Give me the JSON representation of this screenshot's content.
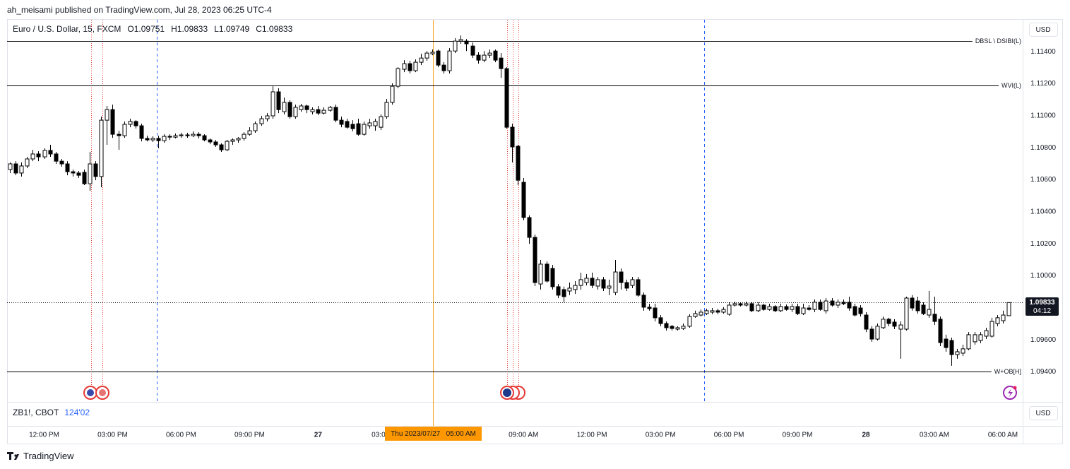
{
  "published": "ah_meisami published on TradingView.com, Jul 28, 2023 06:25 UTC-4",
  "header": {
    "symbol": "Euro / U.S. Dollar, 15, FXCM",
    "ohlc": [
      "O1.09751",
      "H1.09833",
      "L1.09749",
      "C1.09833"
    ]
  },
  "currency": "USD",
  "countdown": "04:12",
  "crosshair_label": "Thu 2023/07/27   05:00 AM",
  "lower_pane": {
    "symbol": "ZB1!, CBOT",
    "value": "124'02"
  },
  "brand": "TradingView",
  "chart_data": {
    "type": "candlestick",
    "up_color": "#ffffff",
    "down_color": "#000000",
    "outline_color": "#000000",
    "grid": false,
    "ylim": [
      1.09217,
      1.11599
    ],
    "yticks": [
      {
        "value": 1.094,
        "label": "1.09400"
      },
      {
        "value": 1.096,
        "label": "1.09600"
      },
      {
        "value": 1.098,
        "label": "1.09800"
      },
      {
        "value": 1.1,
        "label": "1.10000"
      },
      {
        "value": 1.102,
        "label": "1.10200"
      },
      {
        "value": 1.104,
        "label": "1.10400"
      },
      {
        "value": 1.106,
        "label": "1.10600"
      },
      {
        "value": 1.108,
        "label": "1.10800"
      },
      {
        "value": 1.11,
        "label": "1.11000"
      },
      {
        "value": 1.112,
        "label": "1.11200"
      },
      {
        "value": 1.114,
        "label": "1.11400"
      }
    ],
    "levels": [
      {
        "label": "DBSL \\ DSIBI(L)",
        "value": 1.11466
      },
      {
        "label": "WVI(L)",
        "value": 1.11188
      },
      {
        "label": "W+OB[H]",
        "value": 1.09402
      }
    ],
    "categories": [
      null,
      null,
      null,
      null,
      null,
      null,
      "12:00 PM",
      null,
      null,
      null,
      null,
      null,
      null,
      null,
      null,
      null,
      null,
      null,
      "03:00 PM",
      null,
      null,
      null,
      null,
      null,
      null,
      null,
      null,
      null,
      null,
      null,
      "06:00 PM",
      null,
      null,
      null,
      null,
      null,
      null,
      null,
      null,
      null,
      null,
      null,
      "09:00 PM",
      null,
      null,
      null,
      null,
      null,
      null,
      null,
      null,
      null,
      null,
      null,
      "27",
      null,
      null,
      null,
      null,
      null,
      null,
      null,
      null,
      null,
      null,
      null,
      "03:00 AM",
      null,
      null,
      null,
      null,
      null,
      null,
      null,
      null,
      null,
      null,
      null,
      null,
      null,
      null,
      null,
      null,
      null,
      null,
      null,
      null,
      null,
      null,
      null,
      "09:00 AM",
      null,
      null,
      null,
      null,
      null,
      null,
      null,
      null,
      null,
      null,
      null,
      "12:00 PM",
      null,
      null,
      null,
      null,
      null,
      null,
      null,
      null,
      null,
      null,
      null,
      "03:00 PM",
      null,
      null,
      null,
      null,
      null,
      null,
      null,
      null,
      null,
      null,
      null,
      "06:00 PM",
      null,
      null,
      null,
      null,
      null,
      null,
      null,
      null,
      null,
      null,
      null,
      "09:00 PM",
      null,
      null,
      null,
      null,
      null,
      null,
      null,
      null,
      null,
      null,
      null,
      "28",
      null,
      null,
      null,
      null,
      null,
      null,
      null,
      null,
      null,
      null,
      null,
      "03:00 AM",
      null,
      null,
      null,
      null,
      null,
      null,
      null,
      null,
      null,
      null,
      null,
      "06:00 AM",
      null
    ],
    "open": [
      1.10664,
      1.10699,
      1.10642,
      1.10686,
      1.1073,
      1.10761,
      1.10743,
      1.10783,
      1.10761,
      1.10716,
      1.10699,
      1.1065,
      1.10642,
      1.10646,
      1.10575,
      1.10699,
      1.1062,
      1.10972,
      1.11038,
      1.10884,
      1.10875,
      1.10946,
      1.10964,
      1.10937,
      1.10858,
      1.10849,
      1.10858,
      1.10844,
      1.10871,
      1.10866,
      1.10875,
      1.1088,
      1.10875,
      1.10884,
      1.10875,
      1.10849,
      1.10836,
      1.10818,
      1.10787,
      1.1084,
      1.10849,
      1.10858,
      1.10884,
      1.10906,
      1.1095,
      1.10981,
      1.10999,
      1.11149,
      1.11025,
      1.11083,
      1.10994,
      1.11038,
      1.11061,
      1.11025,
      1.11038,
      1.11016,
      1.11034,
      1.11052,
      1.10972,
      1.10964,
      1.10946,
      1.1095,
      1.10884,
      1.10937,
      1.10937,
      1.10928,
      1.10994,
      1.11083,
      1.11184,
      1.1129,
      1.11325,
      1.11281,
      1.11334,
      1.1136,
      1.11387,
      1.11404,
      1.11316,
      1.11281,
      1.11404,
      1.11466,
      1.11466,
      1.11435,
      1.11378,
      1.11347,
      1.11378,
      1.11404,
      1.1136,
      1.11294,
      1.10928,
      1.10809,
      1.10584,
      1.10364,
      1.1024,
      1.09949,
      1.10073,
      1.10046,
      1.09932,
      1.09914,
      1.09905,
      1.09914,
      1.0994,
      1.09958,
      1.09985,
      1.09936,
      1.09976,
      1.09923,
      1.09896,
      1.10024,
      1.09958,
      1.0994,
      1.09976,
      1.09879,
      1.09804,
      1.09799,
      1.09738,
      1.09702,
      1.09685,
      1.09667,
      1.09671,
      1.09685,
      1.09746,
      1.09755,
      1.09764,
      1.09773,
      1.09782,
      1.09773,
      1.0976,
      1.09817,
      1.09826,
      1.09817,
      1.09826,
      1.09782,
      1.09817,
      1.0979,
      1.09808,
      1.09782,
      1.09808,
      1.0979,
      1.09808,
      1.09764,
      1.09799,
      1.0979,
      1.09835,
      1.09782,
      1.09843,
      1.09817,
      1.09835,
      1.09835,
      1.09808,
      1.09799,
      1.09755,
      1.09667,
      1.09605,
      1.09676,
      1.09729,
      1.09711,
      1.09667,
      1.09667,
      1.09861,
      1.09843,
      1.09817,
      1.09755,
      1.0976,
      1.09729,
      1.09605,
      1.09596,
      1.09508,
      1.09517,
      1.09544,
      1.09588,
      1.09596,
      1.09623,
      1.09623,
      1.09702,
      1.0972,
      1.09751
    ],
    "high": [
      1.10708,
      1.10716,
      1.10708,
      1.10743,
      1.10787,
      1.10778,
      1.10796,
      1.10818,
      1.10774,
      1.1073,
      1.10716,
      1.10664,
      1.10655,
      1.10664,
      1.10774,
      1.10716,
      1.10994,
      1.11061,
      1.11069,
      1.10906,
      1.10964,
      1.10981,
      1.10972,
      1.1095,
      1.10875,
      1.10871,
      1.10875,
      1.10884,
      1.10884,
      1.10889,
      1.10893,
      1.10893,
      1.10902,
      1.10897,
      1.10884,
      1.10858,
      1.10849,
      1.10827,
      1.10849,
      1.10858,
      1.10866,
      1.10897,
      1.10928,
      1.10964,
      1.10999,
      1.11016,
      1.11184,
      1.11171,
      1.11113,
      1.11096,
      1.11069,
      1.11074,
      1.11069,
      1.11052,
      1.11061,
      1.11052,
      1.11061,
      1.11069,
      1.10994,
      1.10981,
      1.10972,
      1.10981,
      1.10964,
      1.10981,
      1.10981,
      1.11008,
      1.11105,
      1.11202,
      1.11303,
      1.11347,
      1.11343,
      1.11352,
      1.11387,
      1.11404,
      1.11413,
      1.11413,
      1.11334,
      1.11422,
      1.11484,
      1.11501,
      1.11479,
      1.11457,
      1.11396,
      1.11404,
      1.11413,
      1.11413,
      1.11391,
      1.11303,
      1.1095,
      1.10818,
      1.10611,
      1.10377,
      1.10258,
      1.10099,
      1.1009,
      1.10068,
      1.09949,
      1.09932,
      1.09958,
      1.09967,
      1.1002,
      1.10011,
      1.1002,
      1.09993,
      1.09993,
      1.09976,
      1.10099,
      1.10046,
      1.09976,
      1.09993,
      1.09993,
      1.09896,
      1.09826,
      1.09826,
      1.09755,
      1.09715,
      1.09693,
      1.09685,
      1.09702,
      1.0976,
      1.09782,
      1.0979,
      1.09795,
      1.09799,
      1.09795,
      1.09804,
      1.09835,
      1.09839,
      1.09835,
      1.09839,
      1.09835,
      1.09835,
      1.09826,
      1.09826,
      1.09817,
      1.09826,
      1.09821,
      1.09826,
      1.09826,
      1.09826,
      1.09817,
      1.09852,
      1.09852,
      1.09861,
      1.09861,
      1.09852,
      1.09852,
      1.0987,
      1.09826,
      1.09817,
      1.09773,
      1.09685,
      1.09702,
      1.09746,
      1.09738,
      1.09729,
      1.09715,
      1.0987,
      1.09879,
      1.0987,
      1.09835,
      1.09905,
      1.0987,
      1.09746,
      1.09632,
      1.09614,
      1.09544,
      1.0957,
      1.09649,
      1.09649,
      1.09649,
      1.09676,
      1.09738,
      1.09755,
      1.09782,
      1.09833
    ],
    "low": [
      1.10642,
      1.10628,
      1.1062,
      1.10672,
      1.10716,
      1.10716,
      1.1073,
      1.10743,
      1.10699,
      1.10681,
      1.10628,
      1.1062,
      1.10611,
      1.10567,
      1.10531,
      1.10597,
      1.10553,
      1.10818,
      1.10862,
      1.10787,
      1.10862,
      1.10928,
      1.10919,
      1.1084,
      1.1084,
      1.10836,
      1.10796,
      1.10831,
      1.10849,
      1.10858,
      1.10862,
      1.10862,
      1.10866,
      1.10858,
      1.1084,
      1.10822,
      1.10805,
      1.10774,
      1.10778,
      1.10818,
      1.10831,
      1.10844,
      1.10875,
      1.10893,
      1.10937,
      1.10964,
      1.10981,
      1.11016,
      1.11008,
      1.10981,
      1.10981,
      1.11025,
      1.11016,
      1.11008,
      1.11003,
      1.11008,
      1.11025,
      1.10959,
      1.10928,
      1.10919,
      1.10902,
      1.10875,
      1.10875,
      1.10919,
      1.10906,
      1.10911,
      1.10981,
      1.11069,
      1.11171,
      1.11272,
      1.11263,
      1.11272,
      1.11316,
      1.11343,
      1.11378,
      1.11303,
      1.11263,
      1.11263,
      1.11391,
      1.11449,
      1.11404,
      1.1136,
      1.11325,
      1.11334,
      1.1136,
      1.11334,
      1.11237,
      1.10919,
      1.10708,
      1.10567,
      1.10346,
      1.102,
      1.09936,
      1.09914,
      1.09958,
      1.09914,
      1.09861,
      1.09835,
      1.09879,
      1.09887,
      1.09914,
      1.0994,
      1.09923,
      1.09914,
      1.09905,
      1.09879,
      1.09879,
      1.09914,
      1.09905,
      1.09923,
      1.0987,
      1.09782,
      1.09782,
      1.09715,
      1.09685,
      1.09658,
      1.09658,
      1.09658,
      1.09662,
      1.09676,
      1.09738,
      1.09746,
      1.09755,
      1.0976,
      1.0976,
      1.09764,
      1.09751,
      1.09808,
      1.09808,
      1.09808,
      1.09773,
      1.09773,
      1.09782,
      1.09782,
      1.09773,
      1.09773,
      1.09782,
      1.09773,
      1.09755,
      1.09755,
      1.09782,
      1.09773,
      1.09782,
      1.09764,
      1.09808,
      1.09799,
      1.09817,
      1.09782,
      1.09746,
      1.09746,
      1.09649,
      1.09588,
      1.09596,
      1.09667,
      1.09685,
      1.09667,
      1.09482,
      1.09658,
      1.09782,
      1.09764,
      1.09755,
      1.09738,
      1.09693,
      1.09561,
      1.09526,
      1.09438,
      1.09482,
      1.09499,
      1.09535,
      1.0957,
      1.09579,
      1.09605,
      1.09614,
      1.09685,
      1.09702,
      1.09749
    ],
    "close": [
      1.10699,
      1.10642,
      1.10686,
      1.1073,
      1.10761,
      1.10743,
      1.10783,
      1.10761,
      1.10716,
      1.10699,
      1.1065,
      1.10642,
      1.10628,
      1.10575,
      1.10699,
      1.1062,
      1.10972,
      1.11038,
      1.10884,
      1.10875,
      1.10946,
      1.10964,
      1.10937,
      1.10858,
      1.10849,
      1.10858,
      1.10844,
      1.10871,
      1.10866,
      1.10875,
      1.1088,
      1.10875,
      1.10884,
      1.10875,
      1.10849,
      1.10836,
      1.10818,
      1.10787,
      1.1084,
      1.10849,
      1.10858,
      1.10884,
      1.10906,
      1.1095,
      1.10981,
      1.10999,
      1.11149,
      1.11038,
      1.11083,
      1.10994,
      1.11052,
      1.11061,
      1.11038,
      1.11038,
      1.11016,
      1.11034,
      1.11052,
      1.10972,
      1.10946,
      1.10928,
      1.10919,
      1.10884,
      1.10946,
      1.10955,
      1.10964,
      1.10994,
      1.11083,
      1.11184,
      1.11294,
      1.11325,
      1.11281,
      1.11334,
      1.1136,
      1.11391,
      1.11396,
      1.11316,
      1.11281,
      1.11404,
      1.11466,
      1.11475,
      1.11449,
      1.11378,
      1.11347,
      1.11378,
      1.11391,
      1.11347,
      1.11294,
      1.10928,
      1.10805,
      1.10597,
      1.10364,
      1.1024,
      1.09958,
      1.10073,
      1.09967,
      1.09932,
      1.09879,
      1.0987,
      1.09923,
      1.0994,
      1.09976,
      1.09985,
      1.0994,
      1.09976,
      1.09923,
      1.09936,
      1.10024,
      1.09958,
      1.09923,
      1.09976,
      1.09879,
      1.09804,
      1.09795,
      1.09738,
      1.09702,
      1.09676,
      1.09671,
      1.09676,
      1.09685,
      1.09746,
      1.09764,
      1.09773,
      1.09782,
      1.09782,
      1.09773,
      1.0979,
      1.09817,
      1.09826,
      1.09817,
      1.09826,
      1.09782,
      1.09817,
      1.0979,
      1.09808,
      1.09782,
      1.09808,
      1.0979,
      1.09808,
      1.09764,
      1.09799,
      1.0979,
      1.09835,
      1.0979,
      1.09843,
      1.09817,
      1.09835,
      1.09826,
      1.09799,
      1.09755,
      1.09764,
      1.09667,
      1.09605,
      1.09685,
      1.09729,
      1.09702,
      1.09685,
      1.09693,
      1.09861,
      1.09799,
      1.09782,
      1.09764,
      1.0979,
      1.09715,
      1.09583,
      1.09552,
      1.09508,
      1.09526,
      1.09544,
      1.09632,
      1.09632,
      1.09632,
      1.09658,
      1.09715,
      1.09738,
      1.09755,
      1.09833
    ]
  }
}
